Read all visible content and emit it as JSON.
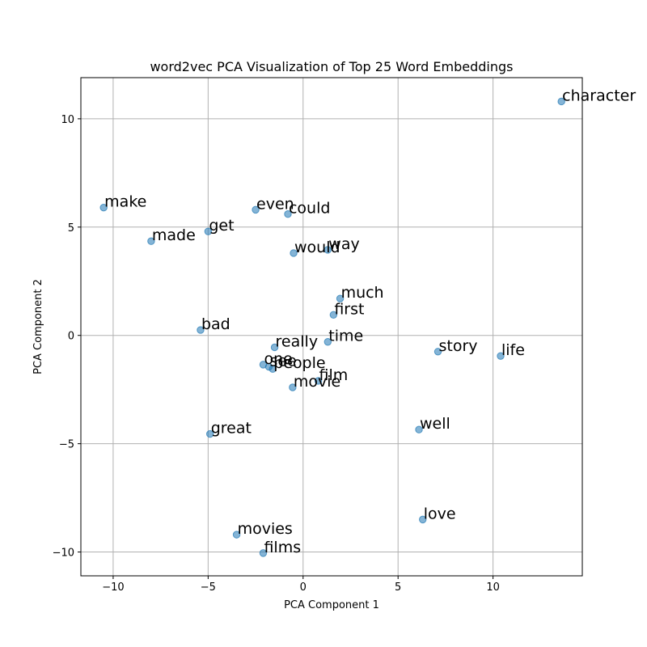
{
  "chart_data": {
    "type": "scatter",
    "title": "word2vec PCA Visualization of Top 25 Word Embeddings",
    "xlabel": "PCA Component 1",
    "ylabel": "PCA Component 2",
    "xlim": [
      -11.7,
      14.7
    ],
    "ylim": [
      -11.1,
      11.9
    ],
    "xticks": [
      -10,
      -5,
      0,
      5,
      10
    ],
    "yticks": [
      -10,
      -5,
      0,
      5,
      10
    ],
    "grid": true,
    "point_color": "#1f77b4",
    "points": [
      {
        "label": "character",
        "x": 13.6,
        "y": 10.8
      },
      {
        "label": "make",
        "x": -10.5,
        "y": 5.9
      },
      {
        "label": "even",
        "x": -2.5,
        "y": 5.8
      },
      {
        "label": "could",
        "x": -0.8,
        "y": 5.6
      },
      {
        "label": "get",
        "x": -5.0,
        "y": 4.8
      },
      {
        "label": "made",
        "x": -8.0,
        "y": 4.35
      },
      {
        "label": "would",
        "x": -0.5,
        "y": 3.8
      },
      {
        "label": "way",
        "x": 1.3,
        "y": 3.95
      },
      {
        "label": "much",
        "x": 1.95,
        "y": 1.7
      },
      {
        "label": "first",
        "x": 1.6,
        "y": 0.95
      },
      {
        "label": "bad",
        "x": -5.4,
        "y": 0.25
      },
      {
        "label": "time",
        "x": 1.3,
        "y": -0.3
      },
      {
        "label": "really",
        "x": -1.5,
        "y": -0.55
      },
      {
        "label": "story",
        "x": 7.1,
        "y": -0.75
      },
      {
        "label": "life",
        "x": 10.4,
        "y": -0.95
      },
      {
        "label": "one",
        "x": -2.1,
        "y": -1.35
      },
      {
        "label": "see",
        "x": -1.8,
        "y": -1.45
      },
      {
        "label": "people",
        "x": -1.6,
        "y": -1.55
      },
      {
        "label": "film",
        "x": 0.8,
        "y": -2.1
      },
      {
        "label": "movie",
        "x": -0.55,
        "y": -2.4
      },
      {
        "label": "great",
        "x": -4.9,
        "y": -4.55
      },
      {
        "label": "well",
        "x": 6.1,
        "y": -4.35
      },
      {
        "label": "love",
        "x": 6.3,
        "y": -8.5
      },
      {
        "label": "movies",
        "x": -3.5,
        "y": -9.2
      },
      {
        "label": "films",
        "x": -2.1,
        "y": -10.05
      }
    ]
  }
}
